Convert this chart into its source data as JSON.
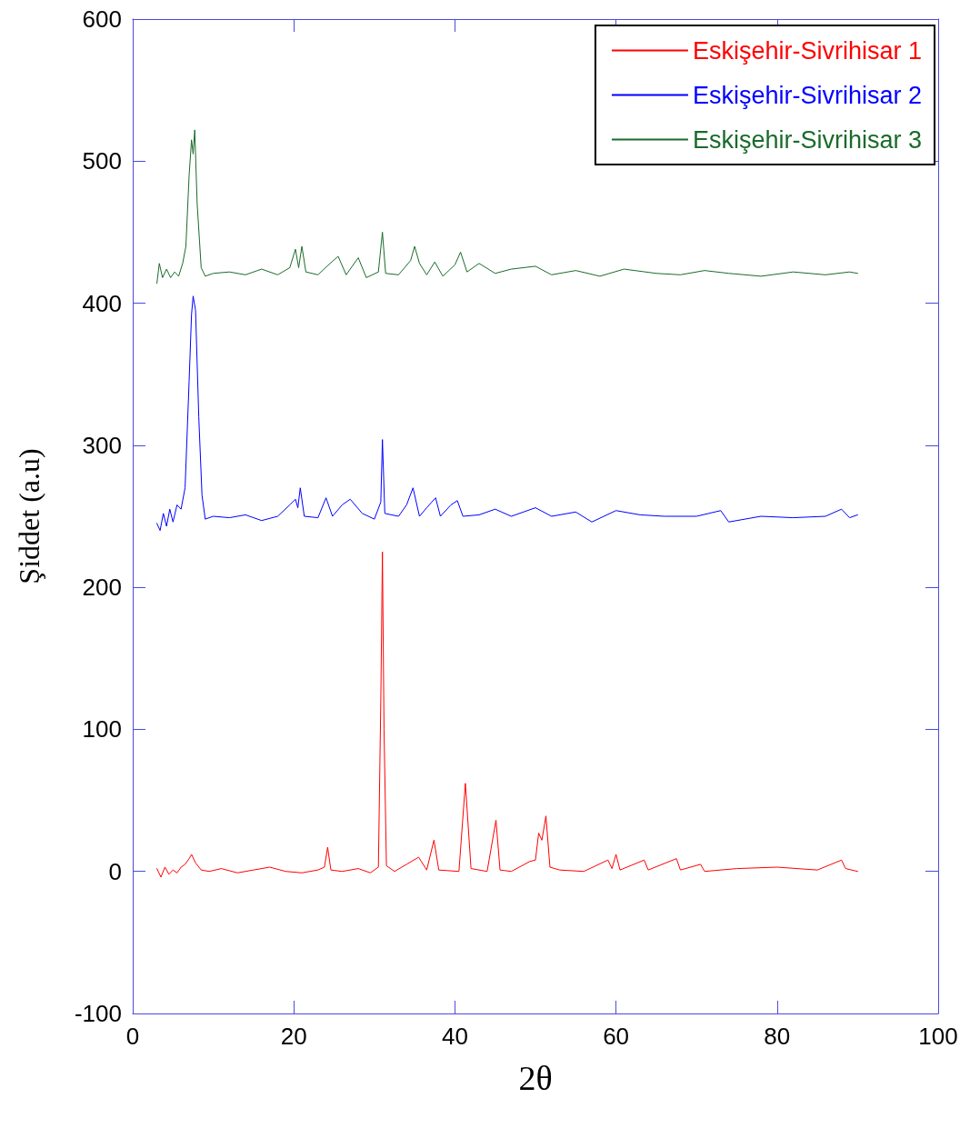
{
  "chart_data": {
    "type": "line",
    "xlabel": "2θ",
    "ylabel": "Şiddet (a.u)",
    "xlim": [
      0,
      100
    ],
    "xticks": [
      0,
      20,
      40,
      60,
      80,
      100
    ],
    "ylim": [
      -100,
      600
    ],
    "yticks": [
      -100,
      0,
      100,
      200,
      300,
      400,
      500,
      600
    ],
    "grid": false,
    "legend": "top right",
    "marker": "none",
    "line_style": "solid",
    "series": [
      {
        "name": "Eskişehir-Sivrihisar 1",
        "color": "#ff0000",
        "x": [
          3,
          3.5,
          4,
          4.5,
          5,
          5.5,
          6,
          6.5,
          7,
          7.3,
          7.8,
          8.5,
          9.5,
          11,
          13,
          15,
          17,
          19,
          21,
          23,
          23.8,
          24.2,
          24.6,
          26,
          28,
          29.5,
          30.5,
          30.8,
          31,
          31.2,
          31.5,
          32.5,
          34,
          35.5,
          36.5,
          37.4,
          38,
          40.5,
          41.3,
          42,
          44,
          45.1,
          45.6,
          47,
          49.3,
          50,
          50.4,
          50.8,
          51.3,
          51.8,
          53,
          56,
          59,
          59.5,
          60,
          60.5,
          63.5,
          64,
          67.5,
          68,
          70.5,
          71,
          75,
          80,
          85,
          88,
          88.5,
          90
        ],
        "values": [
          2,
          -4,
          3,
          -2,
          1,
          -1,
          3,
          5,
          9,
          12,
          6,
          1,
          0,
          2,
          -1,
          1,
          3,
          0,
          -1,
          1,
          3,
          17,
          1,
          0,
          2,
          -1,
          3,
          120,
          225,
          100,
          4,
          0,
          5,
          10,
          1,
          22,
          1,
          0,
          62,
          2,
          0,
          36,
          1,
          0,
          7,
          8,
          27,
          22,
          39,
          3,
          1,
          0,
          8,
          2,
          12,
          1,
          8,
          1,
          9,
          1,
          5,
          0,
          2,
          3,
          1,
          8,
          2,
          0
        ]
      },
      {
        "name": "Eskişehir-Sivrihisar 2",
        "color": "#0000ff",
        "x": [
          3,
          3.4,
          3.8,
          4.2,
          4.6,
          5,
          5.5,
          6,
          6.5,
          7,
          7.3,
          7.5,
          7.8,
          8.2,
          8.6,
          9,
          10,
          12,
          14,
          16,
          18,
          19.5,
          20.2,
          20.5,
          20.8,
          21.3,
          23,
          24,
          24.8,
          26,
          27,
          28.5,
          30,
          30.8,
          31,
          31.3,
          33,
          34,
          34.8,
          35.6,
          36.5,
          37.6,
          38.2,
          39.5,
          40.3,
          41,
          43,
          45,
          47,
          50,
          52,
          55,
          57,
          60,
          63,
          66,
          70,
          73,
          74,
          78,
          82,
          86,
          88,
          89,
          90
        ],
        "values": [
          245,
          240,
          252,
          243,
          255,
          246,
          258,
          255,
          270,
          345,
          392,
          405,
          395,
          320,
          265,
          248,
          250,
          249,
          251,
          247,
          250,
          258,
          262,
          256,
          270,
          250,
          249,
          263,
          250,
          258,
          262,
          252,
          248,
          260,
          304,
          252,
          250,
          258,
          270,
          250,
          256,
          263,
          250,
          258,
          261,
          250,
          251,
          255,
          250,
          256,
          250,
          253,
          246,
          254,
          251,
          250,
          250,
          254,
          246,
          250,
          249,
          250,
          255,
          249,
          251
        ]
      },
      {
        "name": "Eskişehir-Sivrihisar 3",
        "color": "#1a6b2a",
        "x": [
          3,
          3.3,
          3.7,
          4.2,
          4.7,
          5.2,
          5.7,
          6.2,
          6.6,
          7,
          7.3,
          7.5,
          7.7,
          8,
          8.5,
          9,
          10,
          12,
          14,
          16,
          18,
          19.5,
          20.2,
          20.6,
          21,
          21.5,
          23,
          24.5,
          25.5,
          26.5,
          28,
          29,
          30.5,
          31,
          31.4,
          33,
          34.5,
          35,
          35.6,
          36.5,
          37.5,
          38.5,
          40,
          40.7,
          41.5,
          43,
          45,
          47,
          50,
          52,
          55,
          58,
          61,
          65,
          68,
          71,
          74,
          78,
          82,
          86,
          89,
          90
        ],
        "values": [
          414,
          428,
          418,
          424,
          418,
          422,
          419,
          428,
          440,
          490,
          515,
          505,
          522,
          470,
          425,
          419,
          421,
          422,
          420,
          424,
          420,
          425,
          438,
          425,
          440,
          422,
          420,
          428,
          433,
          420,
          432,
          418,
          422,
          450,
          421,
          420,
          430,
          440,
          428,
          420,
          429,
          419,
          427,
          436,
          422,
          428,
          421,
          424,
          426,
          420,
          423,
          419,
          424,
          421,
          420,
          423,
          421,
          419,
          422,
          420,
          422,
          421
        ]
      }
    ]
  }
}
